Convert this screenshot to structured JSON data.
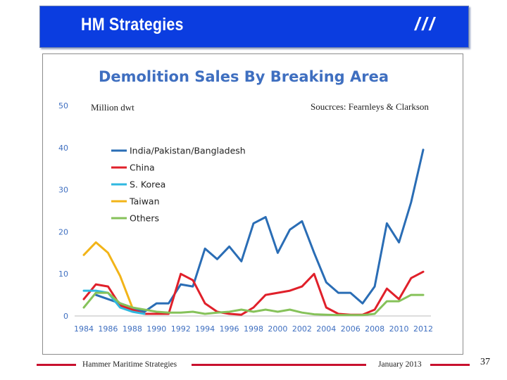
{
  "header": {
    "title": "HM Strategies",
    "slashes": "///"
  },
  "footer": {
    "company": "Hammer Maritime Strategies",
    "date": "January 2013",
    "page": "37"
  },
  "colors": {
    "header_bg": "#0b3de0",
    "accent_red": "#c8102e",
    "title_blue": "#3f6fc0"
  },
  "chart_data": {
    "type": "line",
    "title": "Demolition Sales By Breaking Area",
    "ylabel": "Million dwt",
    "source_note": "Soucrces: Fearnleys & Clarkson",
    "x": [
      1984,
      1985,
      1986,
      1987,
      1988,
      1989,
      1990,
      1991,
      1992,
      1993,
      1994,
      1995,
      1996,
      1997,
      1998,
      1999,
      2000,
      2001,
      2002,
      2003,
      2004,
      2005,
      2006,
      2007,
      2008,
      2009,
      2010,
      2011,
      2012
    ],
    "x_tick_labels": [
      "1984",
      "1986",
      "1988",
      "1990",
      "1992",
      "1994",
      "1996",
      "1998",
      "2000",
      "2002",
      "2004",
      "2006",
      "2008",
      "2010",
      "2012"
    ],
    "y_tick_labels": [
      "0",
      "10",
      "20",
      "30",
      "40",
      "50"
    ],
    "ylim": [
      0,
      50
    ],
    "legend_position": "upper-left",
    "series": [
      {
        "name": "India/Pakistan/Bangladesh",
        "color": "#2a6db5",
        "values": [
          null,
          5,
          4,
          3,
          2,
          1,
          3,
          3,
          7.5,
          7,
          16,
          13.5,
          16.5,
          13,
          22,
          23.5,
          15,
          20.5,
          22.5,
          15,
          8,
          5.5,
          5.5,
          3,
          7,
          22,
          17.5,
          27,
          39.5
        ]
      },
      {
        "name": "China",
        "color": "#e0202a",
        "values": [
          4,
          7.5,
          7,
          2.5,
          1.5,
          0.5,
          0.5,
          0.5,
          10,
          8.5,
          3,
          1,
          0.5,
          0.3,
          2,
          5,
          5.5,
          6,
          7,
          10,
          2,
          0.5,
          0.3,
          0.3,
          1.5,
          6.5,
          4,
          9,
          10.5
        ]
      },
      {
        "name": "S. Korea",
        "color": "#2fb8e0",
        "values": [
          6,
          6,
          5.5,
          2,
          1,
          0.5,
          null,
          null,
          null,
          null,
          null,
          null,
          null,
          null,
          null,
          null,
          null,
          null,
          null,
          null,
          null,
          null,
          null,
          null,
          null,
          null,
          null,
          null,
          null
        ]
      },
      {
        "name": "Taiwan",
        "color": "#f2b418",
        "values": [
          14.5,
          17.5,
          15,
          9.5,
          2,
          null,
          null,
          null,
          null,
          null,
          null,
          null,
          null,
          null,
          null,
          null,
          null,
          null,
          null,
          null,
          null,
          null,
          null,
          null,
          null,
          null,
          null,
          null,
          null
        ]
      },
      {
        "name": "Others",
        "color": "#86c25a",
        "values": [
          2,
          5.5,
          5.5,
          3,
          2,
          1.5,
          1,
          0.8,
          0.8,
          1,
          0.5,
          0.8,
          1,
          1.5,
          1,
          1.5,
          1,
          1.5,
          0.8,
          0.4,
          0.3,
          0.2,
          0.2,
          0.2,
          0.5,
          3.5,
          3.5,
          5,
          5
        ]
      }
    ]
  }
}
